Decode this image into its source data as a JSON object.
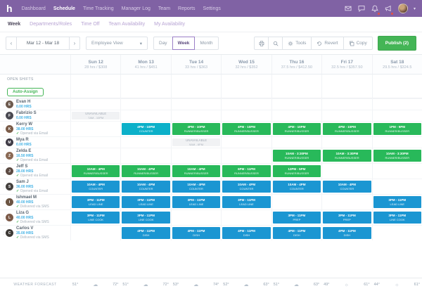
{
  "colors": {
    "nav_purple": "#8062a4",
    "publish_green": "#44b556",
    "shift_green": "#28b95a",
    "shift_blue": "#1b96d2",
    "shift_teal": "#0cb0c9",
    "unavailable_gray": "#f1f2f4",
    "hours_blue": "#3fb0e4",
    "alert_red": "#e8503f"
  },
  "topnav": {
    "logo": "h",
    "items": [
      "Dashboard",
      "Schedule",
      "Time Tracking",
      "Manager Log",
      "Team",
      "Reports",
      "Settings"
    ],
    "active_index": 1,
    "icons": [
      "envelope",
      "chat",
      "bell",
      "megaphone"
    ],
    "icons_with_alert": [
      "bell",
      "megaphone"
    ]
  },
  "subnav": {
    "items": [
      "Week",
      "Departments/Roles",
      "Time Off",
      "Team Availability",
      "My Availability"
    ],
    "active_index": 0
  },
  "toolbar": {
    "prev": "‹",
    "next": "›",
    "date_range": "Mar 12 - Mar 18",
    "view_dropdown": "Employee View",
    "view_caret": "▾",
    "modes": [
      "Day",
      "Week",
      "Month"
    ],
    "active_mode": "Week",
    "tools_label": "Tools",
    "revert_label": "Revert",
    "copy_label": "Copy",
    "publish_label": "Publish (2)"
  },
  "schedule": {
    "days": [
      {
        "label": "Sun 12",
        "summary": "28 hrs / $308"
      },
      {
        "label": "Mon 13",
        "summary": "41 hrs / $451"
      },
      {
        "label": "Tue 14",
        "summary": "33 hrs / $363"
      },
      {
        "label": "Wed 15",
        "summary": "32 hrs / $352"
      },
      {
        "label": "Thu 16",
        "summary": "37.5 hrs / $412.50"
      },
      {
        "label": "Fri 17",
        "summary": "32.5 hrs / $357.50"
      },
      {
        "label": "Sat 18",
        "summary": "29.5 hrs / $324.5"
      }
    ],
    "open_shifts_label": "OPEN SHIFTS",
    "auto_assign_label": "Auto-Assign",
    "employees": [
      {
        "name": "Evan H",
        "initial": "E",
        "avatar_color": "#6d5b4f",
        "hours": "0.00 HRS",
        "status": "",
        "shifts": [
          null,
          null,
          null,
          null,
          null,
          null,
          null
        ]
      },
      {
        "name": "Fabrizio S",
        "initial": "F",
        "avatar_color": "#4a4a52",
        "hours": "0.00 HRS",
        "status": "",
        "shifts": [
          {
            "type": "unavailable",
            "label": "UNAVAILABLE",
            "time": "7AM - 10PM"
          },
          null,
          null,
          null,
          null,
          null,
          null
        ]
      },
      {
        "name": "Kerry W",
        "initial": "K",
        "avatar_color": "#7a5c49",
        "hours": "38.00 HRS",
        "status": "Opened via Email",
        "shifts": [
          null,
          {
            "time": "4PM - 10PM",
            "role": "COUNTER",
            "color": "teal"
          },
          {
            "time": "4PM - 10PM",
            "role": "RUNNER/BUSSER",
            "color": "green"
          },
          {
            "time": "4PM - 10PM",
            "role": "RUNNER/BUSSER",
            "color": "green"
          },
          {
            "time": "4PM - 10PM",
            "role": "RUNNER/BUSSER",
            "color": "green"
          },
          {
            "time": "4PM - 10PM",
            "role": "RUNNER/BUSSER",
            "color": "green"
          },
          {
            "time": "1PM - 9PM",
            "role": "RUNNER/BUSSER",
            "color": "green"
          }
        ]
      },
      {
        "name": "Mya R",
        "initial": "M",
        "avatar_color": "#3e3a45",
        "hours": "0.00 HRS",
        "status": "",
        "shifts": [
          null,
          null,
          {
            "type": "unavailable",
            "label": "UNAVAILABLE",
            "time": "9AM - 6PM"
          },
          null,
          null,
          null,
          null
        ]
      },
      {
        "name": "Zelda E",
        "initial": "Z",
        "avatar_color": "#8a6a55",
        "hours": "16.50 HRS",
        "status": "Opened via Email",
        "shifts": [
          null,
          null,
          null,
          null,
          {
            "time": "10AM - 3:30PM",
            "role": "RUNNER/BUSSER",
            "color": "green"
          },
          {
            "time": "10AM - 3:30PM",
            "role": "RUNNER/BUSSER",
            "color": "green"
          },
          {
            "time": "10AM - 3:30PM",
            "role": "RUNNER/BUSSER",
            "color": "green"
          }
        ]
      },
      {
        "name": "Jeff S",
        "initial": "J",
        "avatar_color": "#5b4a42",
        "hours": "28.00 HRS",
        "status": "Opened via Email",
        "shifts": [
          {
            "time": "10AM - 4PM",
            "role": "RUNNER/BUSSER",
            "color": "green"
          },
          {
            "time": "10AM - 4PM",
            "role": "RUNNER/BUSSER",
            "color": "green"
          },
          {
            "time": "10AM - 4PM",
            "role": "RUNNER/BUSSER",
            "color": "green"
          },
          {
            "time": "6PM - 11PM",
            "role": "RUNNER/BUSSER",
            "color": "green"
          },
          {
            "time": "12PM - 5PM",
            "role": "RUNNER/BUSSER",
            "color": "green"
          },
          null,
          null
        ]
      },
      {
        "name": "Sam J",
        "initial": "S",
        "avatar_color": "#44403e",
        "hours": "36.00 HRS",
        "status": "Opened via Email",
        "shifts": [
          {
            "time": "10AM - 4PM",
            "role": "COUNTER",
            "color": "blue"
          },
          {
            "time": "10AM - 4PM",
            "role": "COUNTER",
            "color": "blue"
          },
          {
            "time": "10AM - 4PM",
            "role": "COUNTER",
            "color": "blue"
          },
          {
            "time": "10AM - 4PM",
            "role": "COUNTER",
            "color": "blue"
          },
          {
            "time": "10AM - 4PM",
            "role": "COUNTER",
            "color": "blue"
          },
          {
            "time": "10AM - 4PM",
            "role": "COUNTER",
            "color": "blue"
          },
          null
        ]
      },
      {
        "name": "Ishmael M",
        "initial": "I",
        "avatar_color": "#6b5442",
        "hours": "40.00 HRS",
        "status": "Delivered via SMS",
        "shifts": [
          {
            "time": "3PM - 11PM",
            "role": "LEAD LINE",
            "color": "blue"
          },
          {
            "time": "3PM - 11PM",
            "role": "LEAD LINE",
            "color": "blue"
          },
          {
            "time": "3PM - 11PM",
            "role": "LEAD LINE",
            "color": "blue"
          },
          {
            "time": "3PM - 11PM",
            "role": "LEAD LINE",
            "color": "blue"
          },
          null,
          null,
          {
            "time": "3PM - 11PM",
            "role": "LEAD LINE",
            "color": "blue"
          }
        ]
      },
      {
        "name": "Liza G",
        "initial": "L",
        "avatar_color": "#7c5a48",
        "hours": "40.00 HRS",
        "status": "Delivered via SMS",
        "shifts": [
          {
            "time": "3PM - 11PM",
            "role": "LINE COOK",
            "color": "blue"
          },
          {
            "time": "3PM - 11PM",
            "role": "LINE COOK",
            "color": "blue"
          },
          null,
          null,
          {
            "time": "3PM - 11PM",
            "role": "PREP",
            "color": "blue"
          },
          {
            "time": "3PM - 11PM",
            "role": "PREP",
            "color": "blue"
          },
          {
            "time": "3PM - 11PM",
            "role": "LINE COOK",
            "color": "blue"
          }
        ]
      },
      {
        "name": "Carlos V",
        "initial": "C",
        "avatar_color": "#3d3935",
        "hours": "35.00 HRS",
        "status": "Delivered via SMS",
        "shifts": [
          null,
          {
            "time": "4PM - 11PM",
            "role": "DISH",
            "color": "blue"
          },
          {
            "time": "4PM - 11PM",
            "role": "DISH",
            "color": "blue"
          },
          {
            "time": "4PM - 11PM",
            "role": "DISH",
            "color": "blue"
          },
          {
            "time": "4PM - 11PM",
            "role": "DISH",
            "color": "blue"
          },
          {
            "time": "4PM - 11PM",
            "role": "DISH",
            "color": "blue"
          },
          null
        ]
      }
    ]
  },
  "weather": {
    "label": "WEATHER FORECAST",
    "days": [
      {
        "low": "51°",
        "icon": "cloud",
        "high": "72°"
      },
      {
        "low": "51°",
        "icon": "cloud",
        "high": "72°"
      },
      {
        "low": "53°",
        "icon": "cloud",
        "high": "74°"
      },
      {
        "low": "52°",
        "icon": "cloud",
        "high": "63°"
      },
      {
        "low": "51°",
        "icon": "cloud",
        "high": "63°"
      },
      {
        "low": "49°",
        "icon": "sun",
        "high": "61°"
      },
      {
        "low": "44°",
        "icon": "sun",
        "high": "61°"
      }
    ]
  }
}
